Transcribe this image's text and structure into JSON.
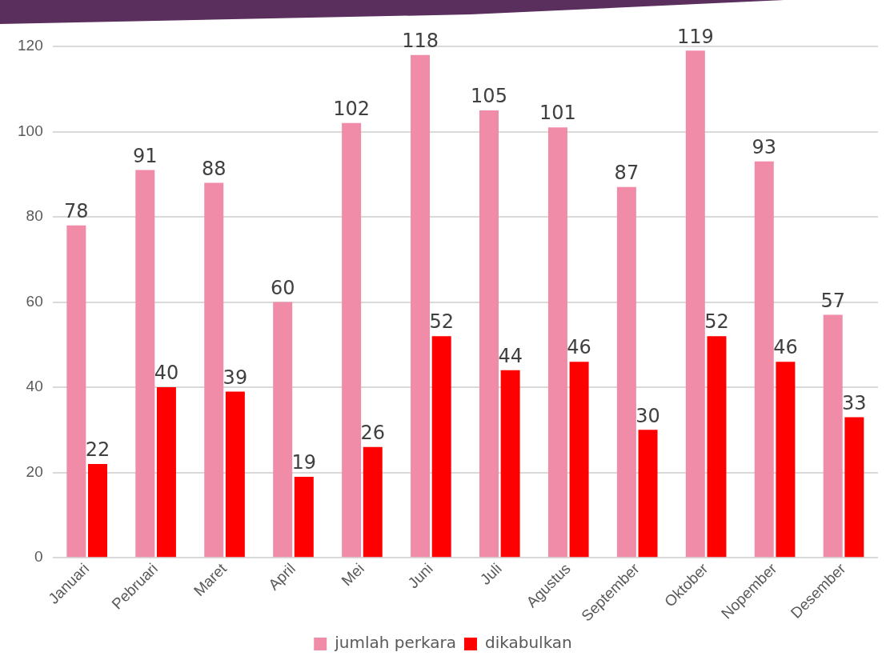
{
  "chart_data": {
    "type": "bar",
    "categories": [
      "Januari",
      "Pebruari",
      "Maret",
      "April",
      "Mei",
      "Juni",
      "Juli",
      "Agustus",
      "September",
      "Oktober",
      "Nopember",
      "Desember"
    ],
    "series": [
      {
        "name": "jumlah perkara",
        "color": "#f08ca8",
        "values": [
          78,
          91,
          88,
          60,
          102,
          118,
          105,
          101,
          87,
          119,
          93,
          57
        ]
      },
      {
        "name": "dikabulkan",
        "color": "#ff0000",
        "values": [
          22,
          40,
          39,
          19,
          26,
          52,
          44,
          46,
          30,
          52,
          46,
          33
        ]
      }
    ],
    "ylim": [
      0,
      120
    ],
    "yticks": [
      0,
      20,
      40,
      60,
      80,
      100,
      120
    ],
    "grid": "y",
    "legend": "bottom",
    "data_labels": true
  }
}
